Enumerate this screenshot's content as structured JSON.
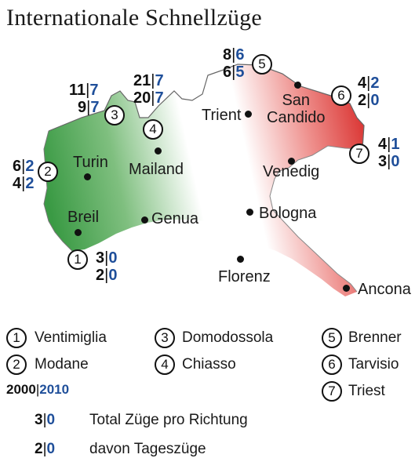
{
  "title": "Internationale Schnellzüge",
  "colors": {
    "green": "#3c9a46",
    "red": "#d9302e",
    "blue": "#1f4f9a"
  },
  "cities": {
    "turin": "Turin",
    "mailand": "Mailand",
    "breil": "Breil",
    "genua": "Genua",
    "trient": "Trient",
    "san_candido": "San\nCandido",
    "venedig": "Venedig",
    "bologna": "Bologna",
    "florenz": "Florenz",
    "ancona": "Ancona"
  },
  "crossings": [
    {
      "num": "1",
      "name": "Ventimiglia",
      "total": [
        "3",
        "0"
      ],
      "day": [
        "2",
        "0"
      ]
    },
    {
      "num": "2",
      "name": "Modane",
      "total": [
        "6",
        "2"
      ],
      "day": [
        "4",
        "2"
      ]
    },
    {
      "num": "3",
      "name": "Domodossola",
      "total": [
        "11",
        "7"
      ],
      "day": [
        "9",
        "7"
      ]
    },
    {
      "num": "4",
      "name": "Chiasso",
      "total": [
        "21",
        "7"
      ],
      "day": [
        "20",
        "7"
      ]
    },
    {
      "num": "5",
      "name": "Brenner",
      "total": [
        "8",
        "6"
      ],
      "day": [
        "6",
        "5"
      ]
    },
    {
      "num": "6",
      "name": "Tarvisio",
      "total": [
        "4",
        "2"
      ],
      "day": [
        "2",
        "0"
      ]
    },
    {
      "num": "7",
      "name": "Triest",
      "total": [
        "4",
        "1"
      ],
      "day": [
        "3",
        "0"
      ]
    }
  ],
  "legend": {
    "years": [
      "2000",
      "2010"
    ],
    "key_total": [
      "3",
      "0"
    ],
    "key_total_label": "Total Züge pro Richtung",
    "key_day": [
      "2",
      "0"
    ],
    "key_day_label": "davon Tageszüge"
  }
}
